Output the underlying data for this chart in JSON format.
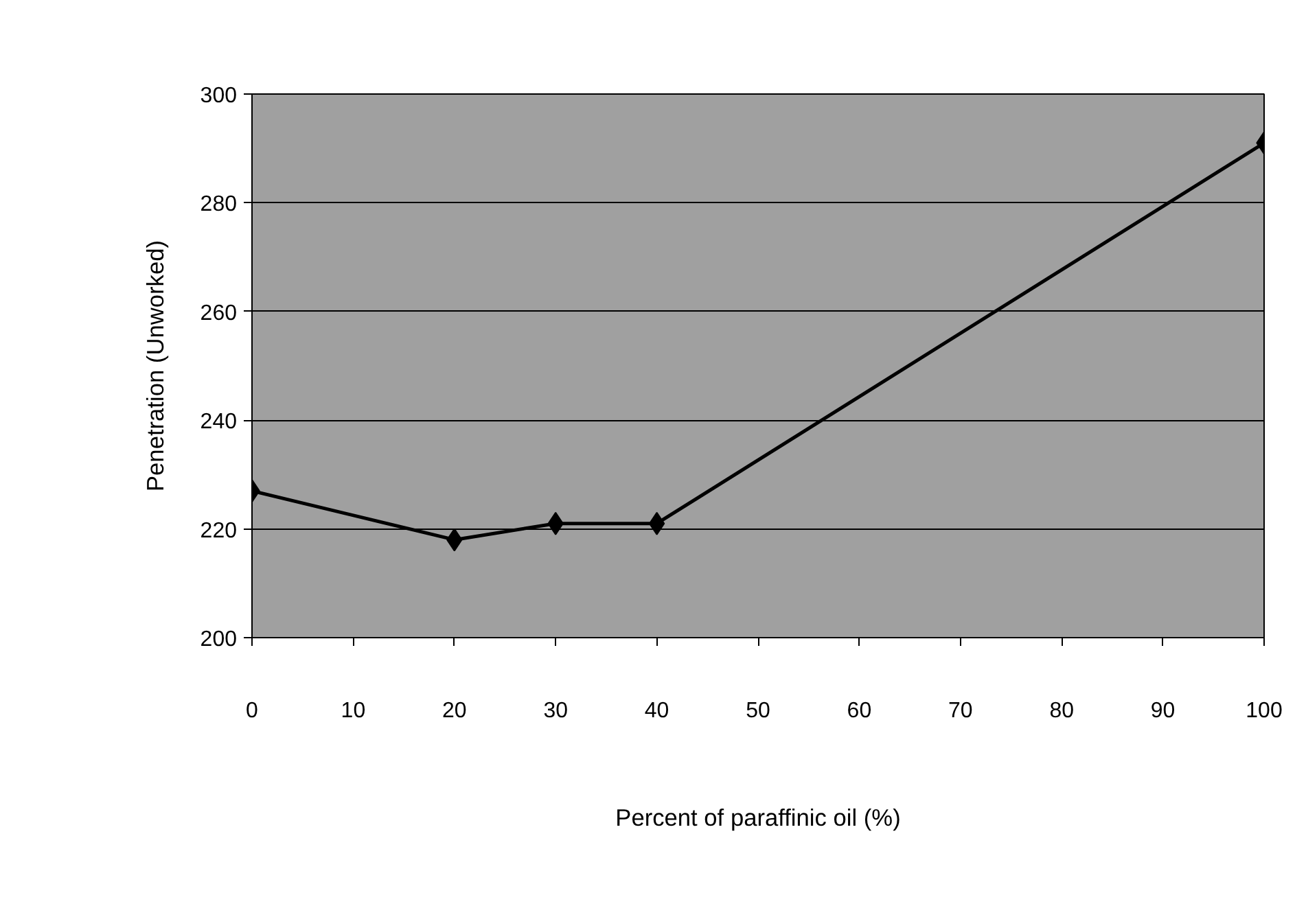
{
  "chart_data": {
    "type": "line",
    "xlabel": "Percent of paraffinic oil (%)",
    "ylabel": "Penetration (Unworked)",
    "x": [
      0,
      20,
      30,
      40,
      100
    ],
    "series": [
      {
        "color": "#000000",
        "values": [
          227,
          218,
          221,
          221,
          291
        ]
      }
    ],
    "xlim": [
      0,
      100
    ],
    "xticks": [
      0,
      10,
      20,
      30,
      40,
      50,
      60,
      70,
      80,
      90,
      100
    ],
    "ylim": [
      200,
      300
    ],
    "yticks": [
      200,
      220,
      240,
      260,
      280,
      300
    ],
    "grid": "y",
    "marker": "diamond",
    "line_style": "solid"
  }
}
